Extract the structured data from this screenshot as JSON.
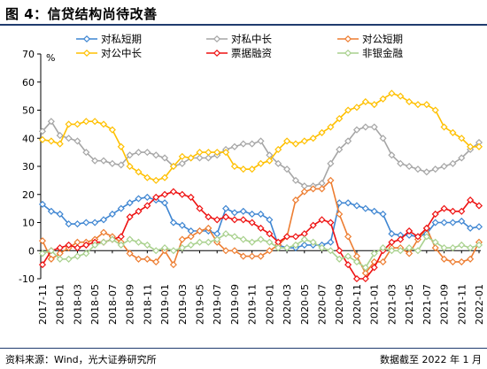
{
  "header": {
    "title": "图 4：信贷结构尚待改善"
  },
  "footer": {
    "source": "资料来源：Wind，光大证券研究所",
    "date": "数据截至 2022 年 1 月"
  },
  "chart_data": {
    "type": "line",
    "title": "",
    "xlabel": "",
    "ylabel": "%",
    "ylim": [
      -10,
      70
    ],
    "yticks": [
      -10,
      0,
      10,
      20,
      30,
      40,
      50,
      60,
      70
    ],
    "grid": false,
    "legend_position": "top",
    "x": [
      "2017-11",
      "2017-12",
      "2018-01",
      "2018-02",
      "2018-03",
      "2018-04",
      "2018-05",
      "2018-06",
      "2018-07",
      "2018-08",
      "2018-09",
      "2018-10",
      "2018-11",
      "2018-12",
      "2019-01",
      "2019-02",
      "2019-03",
      "2019-04",
      "2019-05",
      "2019-06",
      "2019-07",
      "2019-08",
      "2019-09",
      "2019-10",
      "2019-11",
      "2019-12",
      "2020-01",
      "2020-02",
      "2020-03",
      "2020-04",
      "2020-05",
      "2020-06",
      "2020-07",
      "2020-08",
      "2020-09",
      "2020-10",
      "2020-11",
      "2020-12",
      "2021-01",
      "2021-02",
      "2021-03",
      "2021-04",
      "2021-05",
      "2021-06",
      "2021-07",
      "2021-08",
      "2021-09",
      "2021-10",
      "2021-11",
      "2021-12",
      "2022-01"
    ],
    "xtick_labels": [
      "2017-11",
      "2018-01",
      "2018-03",
      "2018-05",
      "2018-07",
      "2018-09",
      "2018-11",
      "2019-01",
      "2019-03",
      "2019-05",
      "2019-07",
      "2019-09",
      "2019-11",
      "2020-01",
      "2020-03",
      "2020-05",
      "2020-07",
      "2020-09",
      "2020-11",
      "2021-01",
      "2021-03",
      "2021-05",
      "2021-07",
      "2021-09",
      "2021-11",
      "2022-01"
    ],
    "series": [
      {
        "name": "对私短期",
        "color": "#3f86d2",
        "values": [
          16.5,
          14,
          13,
          9.5,
          9.5,
          10,
          10,
          11,
          13,
          15,
          17,
          18.5,
          19,
          18,
          17,
          10,
          9,
          7,
          7,
          7,
          6,
          15,
          13.5,
          14,
          13,
          13,
          11,
          2,
          1,
          1,
          2,
          2,
          2,
          3,
          17,
          17,
          16,
          15,
          14,
          13,
          6,
          5.5,
          5.5,
          5,
          6,
          10,
          10,
          10,
          10.5,
          8,
          8.5
        ]
      },
      {
        "name": "对私中长",
        "color": "#a6a6a6",
        "values": [
          42.5,
          46,
          41,
          40,
          39,
          35,
          32,
          32,
          31,
          30.5,
          34,
          35,
          35,
          34,
          33,
          30,
          31,
          33,
          33,
          33,
          34,
          36,
          37,
          38,
          38,
          39,
          34,
          31,
          29,
          25,
          23,
          23,
          24,
          31,
          36,
          39,
          43,
          44,
          44,
          40,
          34,
          31,
          30,
          29,
          28,
          29,
          30,
          31,
          33,
          36,
          38.5
        ]
      },
      {
        "name": "对公短期",
        "color": "#ed7d31",
        "values": [
          3.5,
          -3,
          -1,
          1,
          3,
          3,
          4,
          6.5,
          5,
          3,
          -1,
          -3,
          -3,
          -4,
          0,
          -5,
          4,
          5,
          7,
          8,
          3,
          0,
          0,
          -2,
          -2,
          -2,
          0,
          2,
          5,
          18,
          21,
          22,
          22,
          25,
          13,
          5,
          -2,
          -8,
          -4,
          -4,
          1,
          1,
          -1,
          4,
          8,
          1,
          -3,
          -4,
          -4,
          -3,
          3
        ]
      },
      {
        "name": "对公中长",
        "color": "#ffc000",
        "values": [
          39.5,
          39,
          38,
          45,
          45,
          46,
          46,
          45,
          43,
          37,
          30,
          28,
          26,
          25,
          26,
          30,
          33.5,
          33,
          35,
          35,
          35,
          35,
          30,
          29,
          29,
          31,
          32,
          36,
          39,
          38,
          39,
          40,
          42,
          44,
          47,
          50,
          51,
          53,
          52,
          54,
          56,
          55,
          53,
          52,
          52,
          50,
          44,
          42,
          40,
          37,
          37
        ]
      },
      {
        "name": "票据融资",
        "color": "#ee1111",
        "values": [
          -5,
          0,
          1,
          2,
          1,
          2,
          3,
          3,
          4,
          5,
          12,
          14,
          16,
          19,
          20,
          21,
          20,
          19,
          15,
          12,
          11,
          12,
          11,
          11,
          10,
          8,
          6,
          3,
          5,
          5,
          6,
          9,
          11,
          10,
          0,
          -5,
          -10,
          -10,
          -6,
          0,
          3,
          4,
          7,
          5,
          8,
          13,
          15,
          14,
          14,
          18,
          16
        ]
      },
      {
        "name": "非银金融",
        "color": "#a9d18e",
        "values": [
          -1,
          0,
          -3,
          -3,
          -2,
          -1,
          2,
          3,
          4,
          2,
          4,
          3,
          2,
          0,
          1,
          0,
          1,
          2,
          3,
          3,
          4,
          6,
          5,
          4,
          3,
          4,
          3,
          1,
          1,
          2,
          4,
          3,
          1,
          0,
          -3,
          -2,
          -4,
          -6,
          -1,
          1,
          0,
          0,
          1,
          0,
          5,
          3,
          1,
          1,
          2,
          1,
          2
        ]
      }
    ]
  }
}
